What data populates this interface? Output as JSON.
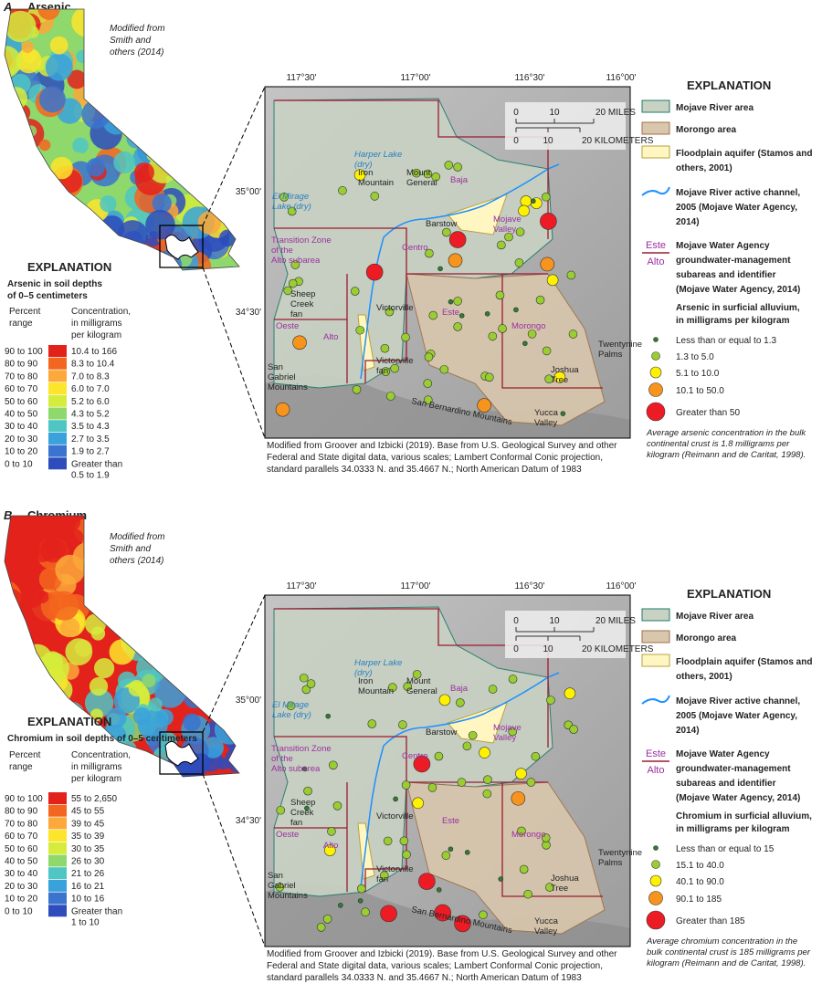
{
  "inset_map": {
    "lon_labels": [
      "117°30'",
      "117°00'",
      "116°30'",
      "116°00'"
    ],
    "lat_labels": [
      "35°00'",
      "34°30'"
    ],
    "scale_miles": [
      "0",
      "10",
      "20 MILES"
    ],
    "scale_km": [
      "0",
      "10",
      "20 KILOMETERS"
    ],
    "places": [
      {
        "lines": [
          "Harper Lake",
          "(dry)"
        ],
        "color": "#2a7fc0"
      },
      {
        "lines": [
          "Iron",
          "Mountain"
        ],
        "color": "#222222"
      },
      {
        "lines": [
          "Mount",
          "General"
        ],
        "color": "#222222"
      },
      {
        "lines": [
          "Baja"
        ],
        "color": "#9b30a0"
      },
      {
        "lines": [
          "El Mirage",
          "Lake (dry)"
        ],
        "color": "#2a7fc0"
      },
      {
        "lines": [
          "Barstow"
        ],
        "color": "#222222"
      },
      {
        "lines": [
          "Mojave",
          "Valley"
        ],
        "color": "#9b30a0"
      },
      {
        "lines": [
          "Transition Zone",
          "of the",
          "Alto subarea"
        ],
        "color": "#9b30a0"
      },
      {
        "lines": [
          "Centro"
        ],
        "color": "#9b30a0"
      },
      {
        "lines": [
          "Sheep",
          "Creek",
          "fan"
        ],
        "color": "#222222"
      },
      {
        "lines": [
          "Victorville"
        ],
        "color": "#222222"
      },
      {
        "lines": [
          "Este"
        ],
        "color": "#9b30a0"
      },
      {
        "lines": [
          "Oeste"
        ],
        "color": "#9b30a0"
      },
      {
        "lines": [
          "Alto"
        ],
        "color": "#9b30a0"
      },
      {
        "lines": [
          "Morongo"
        ],
        "color": "#9b30a0"
      },
      {
        "lines": [
          "Victorville",
          "fan"
        ],
        "color": "#222222"
      },
      {
        "lines": [
          "San",
          "Gabriel",
          "Mountains"
        ],
        "color": "#222222"
      },
      {
        "lines": [
          "San Bernardino Mountains"
        ],
        "color": "#222222"
      },
      {
        "lines": [
          "Joshua",
          "Tree"
        ],
        "color": "#222222"
      },
      {
        "lines": [
          "Twentynine",
          "Palms"
        ],
        "color": "#222222"
      },
      {
        "lines": [
          "Yucca",
          "Valley"
        ],
        "color": "#222222"
      }
    ],
    "caption": [
      "Modified from Groover and Izbicki (2019). Base from U.S. Geological Survey and other",
      "Federal and State digital data, various scales; Lambert Conformal Conic projection,",
      "standard parallels 34.0333 N. and 35.4667 N.; North American Datum of 1983"
    ],
    "legend_title": "EXPLANATION",
    "legend_items": [
      [
        "Mojave River area"
      ],
      [
        "Morongo area"
      ],
      [
        "Floodplain aquifer (Stamos and",
        "others, 2001)"
      ],
      [
        "Mojave River active channel,",
        "2005 (Mojave Water Agency,",
        "2014)"
      ]
    ],
    "subarea_key": {
      "top": "Este",
      "bottom": "Alto",
      "lines": [
        "Mojave Water Agency",
        "groundwater-management",
        "subareas and identifier",
        "(Mojave Water Agency, 2014)"
      ]
    }
  },
  "panels": [
    {
      "letter": "A.",
      "title": "Arsenic",
      "credit": [
        "Modified from",
        "Smith and",
        "others (2014)"
      ],
      "explanation_title": "EXPLANATION",
      "explanation_subtitle": [
        "Arsenic in soil depths",
        "of 0–5 centimeters"
      ],
      "percent_header": [
        "Percent",
        "range"
      ],
      "concentration_header": [
        "Concentration,",
        "in milligrams",
        "per kilogram"
      ],
      "ranges": [
        {
          "percent": "90 to 100",
          "concentration": [
            "10.4 to 166"
          ],
          "color": "#e3221c"
        },
        {
          "percent": "80 to 90",
          "concentration": [
            "8.3 to 10.4"
          ],
          "color": "#f3661f"
        },
        {
          "percent": "70 to 80",
          "concentration": [
            "7.0 to 8.3"
          ],
          "color": "#fca83a"
        },
        {
          "percent": "60 to 70",
          "concentration": [
            "6.0 to 7.0"
          ],
          "color": "#fde52b"
        },
        {
          "percent": "50 to 60",
          "concentration": [
            "5.2 to 6.0"
          ],
          "color": "#d6ec3c"
        },
        {
          "percent": "40 to 50",
          "concentration": [
            "4.3 to 5.2"
          ],
          "color": "#8fd86c"
        },
        {
          "percent": "30 to 40",
          "concentration": [
            "3.5 to 4.3"
          ],
          "color": "#4fc6c4"
        },
        {
          "percent": "20 to 30",
          "concentration": [
            "2.7 to 3.5"
          ],
          "color": "#39a2da"
        },
        {
          "percent": "10 to 20",
          "concentration": [
            "1.9 to 2.7"
          ],
          "color": "#3a74cf"
        },
        {
          "percent": "0 to 10",
          "concentration": [
            "Greater than",
            "0.5 to 1.9"
          ],
          "color": "#2e4cbc"
        }
      ],
      "symbol_title": [
        "Arsenic in surficial alluvium,",
        "in milligrams per kilogram"
      ],
      "symbols": [
        {
          "label": "Less than or equal to 1.3",
          "color": "#2e7d32"
        },
        {
          "label": "1.3 to 5.0",
          "color": "#9acd32"
        },
        {
          "label": "5.1 to 10.0",
          "color": "#fff200"
        },
        {
          "label": "10.1 to 50.0",
          "color": "#f7941d"
        },
        {
          "label": "Greater than 50",
          "color": "#ed1c24"
        }
      ],
      "note": [
        "Average arsenic concentration in the bulk",
        "continental crust is 1.8 milligrams per",
        "kilogram (Reimann and de Caritat, 1998)."
      ]
    },
    {
      "letter": "B.",
      "title": "Chromium",
      "credit": [
        "Modified from",
        "Smith and",
        "others (2014)"
      ],
      "explanation_title": "EXPLANATION",
      "explanation_subtitle": [
        "Chromium in soil depths of 0–5 centimeters"
      ],
      "percent_header": [
        "Percent",
        "range"
      ],
      "concentration_header": [
        "Concentration,",
        "in milligrams",
        "per kilogram"
      ],
      "ranges": [
        {
          "percent": "90 to 100",
          "concentration": [
            "55 to 2,650"
          ],
          "color": "#e3221c"
        },
        {
          "percent": "80 to 90",
          "concentration": [
            "45 to 55"
          ],
          "color": "#f3661f"
        },
        {
          "percent": "70 to 80",
          "concentration": [
            "39 to 45"
          ],
          "color": "#fca83a"
        },
        {
          "percent": "60 to 70",
          "concentration": [
            "35 to 39"
          ],
          "color": "#fde52b"
        },
        {
          "percent": "50 to 60",
          "concentration": [
            "30 to 35"
          ],
          "color": "#d6ec3c"
        },
        {
          "percent": "40 to 50",
          "concentration": [
            "26 to 30"
          ],
          "color": "#8fd86c"
        },
        {
          "percent": "30 to 40",
          "concentration": [
            "21 to 26"
          ],
          "color": "#4fc6c4"
        },
        {
          "percent": "20 to 30",
          "concentration": [
            "16 to 21"
          ],
          "color": "#39a2da"
        },
        {
          "percent": "10 to 20",
          "concentration": [
            "10 to 16"
          ],
          "color": "#3a74cf"
        },
        {
          "percent": "0 to 10",
          "concentration": [
            "Greater than",
            "1 to 10"
          ],
          "color": "#2e4cbc"
        }
      ],
      "symbol_title": [
        "Chromium in surficial alluvium,",
        "in milligrams per kilogram"
      ],
      "symbols": [
        {
          "label": "Less than or equal to 15",
          "color": "#2e7d32"
        },
        {
          "label": "15.1 to 40.0",
          "color": "#9acd32"
        },
        {
          "label": "40.1 to 90.0",
          "color": "#fff200"
        },
        {
          "label": "90.1 to 185",
          "color": "#f7941d"
        },
        {
          "label": "Greater than 185",
          "color": "#ed1c24"
        }
      ],
      "note": [
        "Average chromium concentration in the",
        "bulk continental crust is 185 milligrams per",
        "kilogram (Reimann and de Caritat, 1998)."
      ]
    }
  ]
}
